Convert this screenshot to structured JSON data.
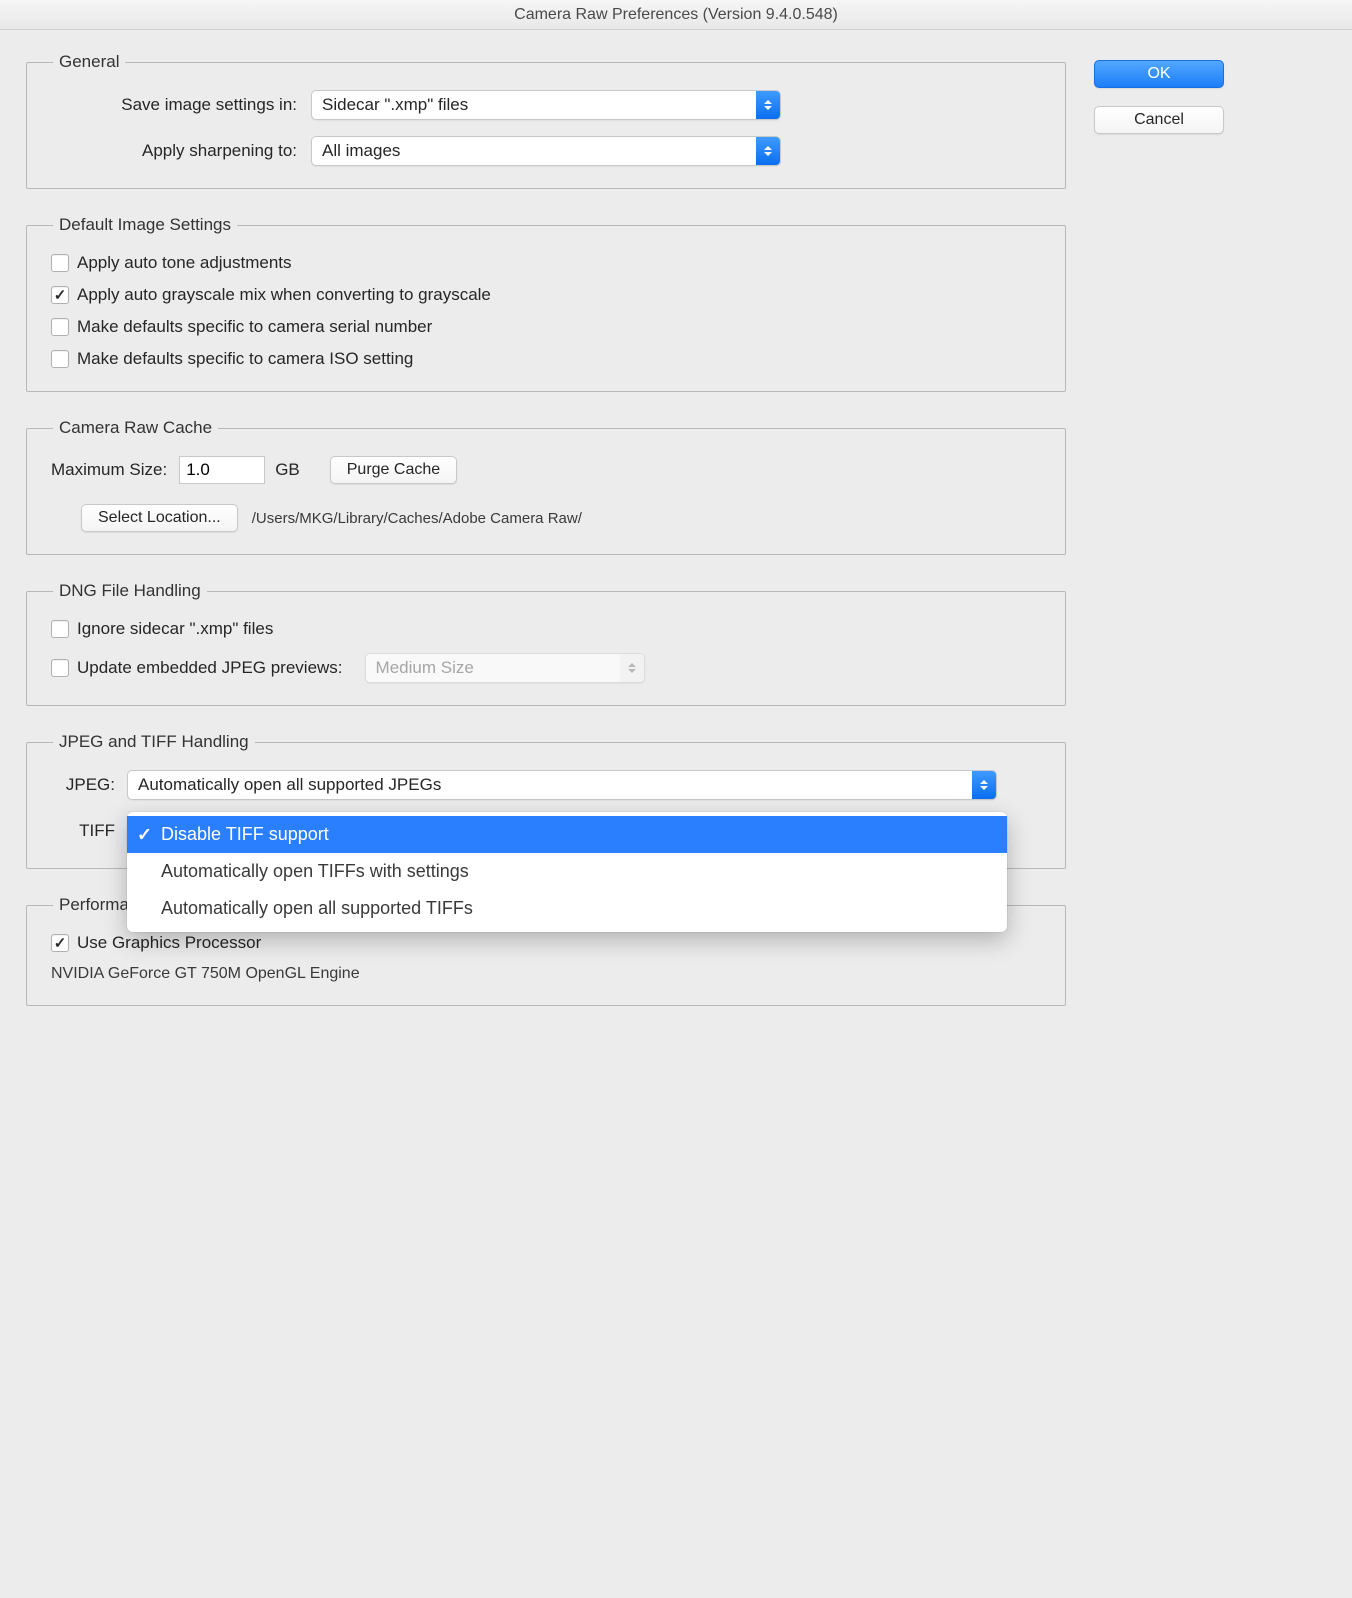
{
  "window": {
    "title": "Camera Raw Preferences  (Version 9.4.0.548)"
  },
  "buttons": {
    "ok": "OK",
    "cancel": "Cancel"
  },
  "general": {
    "legend": "General",
    "save_label": "Save image settings in:",
    "save_value": "Sidecar \".xmp\" files",
    "sharpen_label": "Apply sharpening to:",
    "sharpen_value": "All images"
  },
  "defaults": {
    "legend": "Default Image Settings",
    "items": [
      {
        "label": "Apply auto tone adjustments",
        "checked": false
      },
      {
        "label": "Apply auto grayscale mix when converting to grayscale",
        "checked": true
      },
      {
        "label": "Make defaults specific to camera serial number",
        "checked": false
      },
      {
        "label": "Make defaults specific to camera ISO setting",
        "checked": false
      }
    ]
  },
  "cache": {
    "legend": "Camera Raw Cache",
    "max_label": "Maximum Size:",
    "max_value": "1.0",
    "unit": "GB",
    "purge": "Purge Cache",
    "select": "Select Location...",
    "path": "/Users/MKG/Library/Caches/Adobe Camera Raw/"
  },
  "dng": {
    "legend": "DNG File Handling",
    "ignore": {
      "label": "Ignore sidecar \".xmp\" files",
      "checked": false
    },
    "update": {
      "label": "Update embedded JPEG previews:",
      "checked": false
    },
    "size_value": "Medium Size"
  },
  "jpegtiff": {
    "legend": "JPEG and TIFF Handling",
    "jpeg_label": "JPEG:",
    "jpeg_value": "Automatically open all supported JPEGs",
    "tiff_label": "TIFF",
    "tiff_menu": {
      "selected_index": 0,
      "items": [
        "Disable TIFF support",
        "Automatically open TIFFs with settings",
        "Automatically open all supported TIFFs"
      ]
    }
  },
  "perf": {
    "legend": "Performance",
    "gpu": {
      "label": "Use Graphics Processor",
      "checked": true
    },
    "gpu_name": "NVIDIA GeForce GT 750M OpenGL Engine"
  },
  "select_widths": {
    "general": 470,
    "jpeg": 870,
    "dng_size": 280
  }
}
